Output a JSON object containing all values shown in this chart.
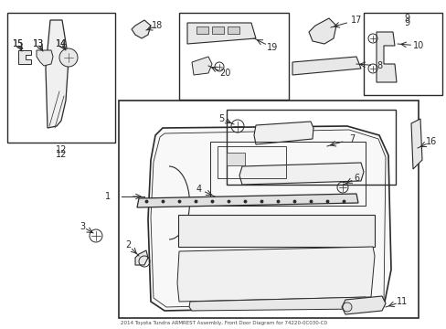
{
  "title": "2014 Toyota Tundra ARMREST Assembly, Front Door Diagram for 74220-0C030-C0",
  "bg_color": "#ffffff",
  "line_color": "#2a2a2a",
  "fig_width": 4.89,
  "fig_height": 3.6,
  "dpi": 100
}
